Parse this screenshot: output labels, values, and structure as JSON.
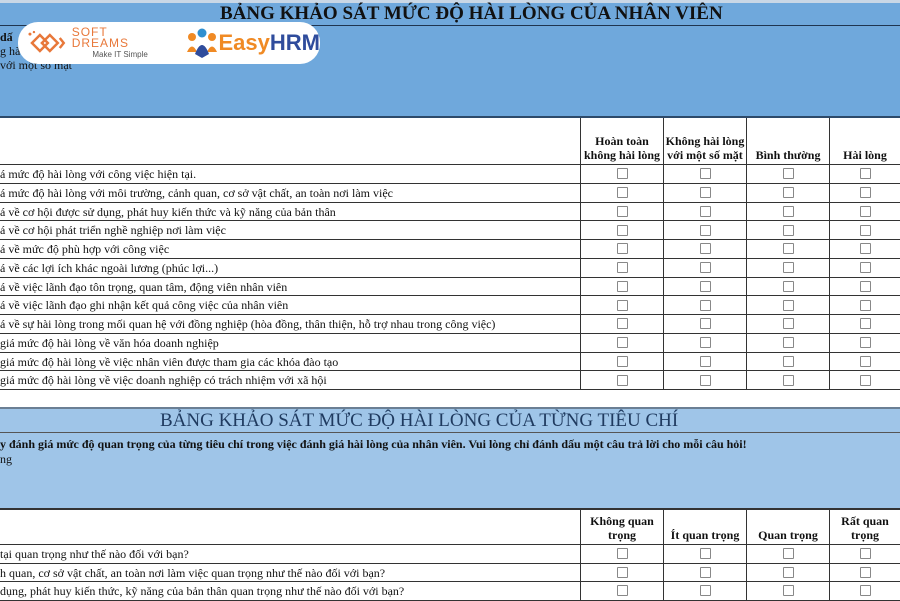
{
  "section1": {
    "title": "BẢNG KHẢO SÁT MỨC ĐỘ HÀI LÒNG CỦA NHÂN VIÊN",
    "info_lines": [
      "dấ",
      "g hà",
      "với một số mặt"
    ],
    "columns": [
      "Hoàn toàn không hài lòng",
      "Không hài lòng với một số mặt",
      "Bình thường",
      "Hài lòng"
    ],
    "rows": [
      "á mức độ hài lòng với công việc hiện tại.",
      "á mức độ hài lòng với môi trường, cảnh quan, cơ sở vật chất, an toàn nơi làm việc",
      "á về cơ hội được sử dụng, phát huy kiến thức và kỹ năng của bản thân",
      "á về cơ hội phát triển nghề nghiệp nơi làm việc",
      "á về mức độ phù hợp với công việc",
      "á về các lợi ích khác ngoài lương (phúc lợi...)",
      "á về việc lãnh đạo tôn trọng, quan tâm, động viên nhân viên",
      "á về việc lãnh đạo ghi nhận kết quả công việc của nhân viên",
      "á về sự hài lòng trong mối quan hệ với đồng nghiệp (hòa đồng, thân thiện, hỗ trợ nhau trong công việc)",
      "giá mức độ hài lòng về văn hóa doanh nghiệp",
      "giá mức độ hài lòng về việc nhân viên được tham gia các khóa đào tạo",
      "giá mức độ hài lòng về việc doanh nghiệp có trách nhiệm với xã hội"
    ]
  },
  "section2": {
    "title": "BẢNG KHẢO SÁT MỨC ĐỘ HÀI LÒNG CỦA TỪNG TIÊU CHÍ",
    "info_lines": [
      "y đánh giá mức độ quan trọng của từng tiêu chí trong việc đánh giá hài lòng của nhân viên. Vui lòng chỉ đánh dấu một câu trả lời cho mỗi câu hỏi!",
      "ng"
    ],
    "columns": [
      "Không quan trọng",
      "Ít quan trọng",
      "Quan trọng",
      "Rất quan trọng"
    ],
    "rows": [
      "tại quan trọng như thế nào đối với bạn?",
      "h quan, cơ sở vật chất, an toàn nơi làm việc quan trọng như thế nào đối với bạn?",
      "dụng, phát huy kiến thức, kỹ năng của bản thân quan trọng như thế nào đối với bạn?"
    ]
  },
  "logo": {
    "softdreams_name": "SOFT DREAMS",
    "softdreams_tagline": "Make IT Simple",
    "easyhrm_a": "Easy",
    "easyhrm_b": "HRM"
  },
  "colors": {
    "title_bar_1": "#6fa8dc",
    "title_bar_2": "#9fc5e8",
    "softdreams_orange": "#e8783a",
    "easyhrm_blue": "#2f4c9c"
  }
}
